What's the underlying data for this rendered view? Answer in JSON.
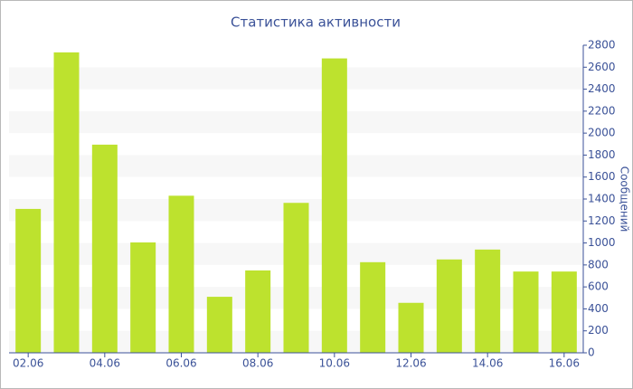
{
  "chart_data": {
    "type": "bar",
    "title": "Статистика активности",
    "y_label": "Сообщений",
    "categories": [
      "02.06",
      null,
      "04.06",
      null,
      "06.06",
      null,
      "08.06",
      null,
      "10.06",
      null,
      "12.06",
      null,
      "14.06",
      null,
      "16.06"
    ],
    "values": [
      1310,
      2735,
      1895,
      1005,
      1430,
      510,
      750,
      1365,
      2680,
      825,
      455,
      850,
      940,
      740,
      740
    ],
    "color": "#bde22e",
    "ylim": [
      0,
      2800
    ],
    "yticks": [
      0,
      200,
      400,
      600,
      800,
      1000,
      1200,
      1400,
      1600,
      1800,
      2000,
      2200,
      2400,
      2600,
      2800
    ],
    "grid": true
  }
}
